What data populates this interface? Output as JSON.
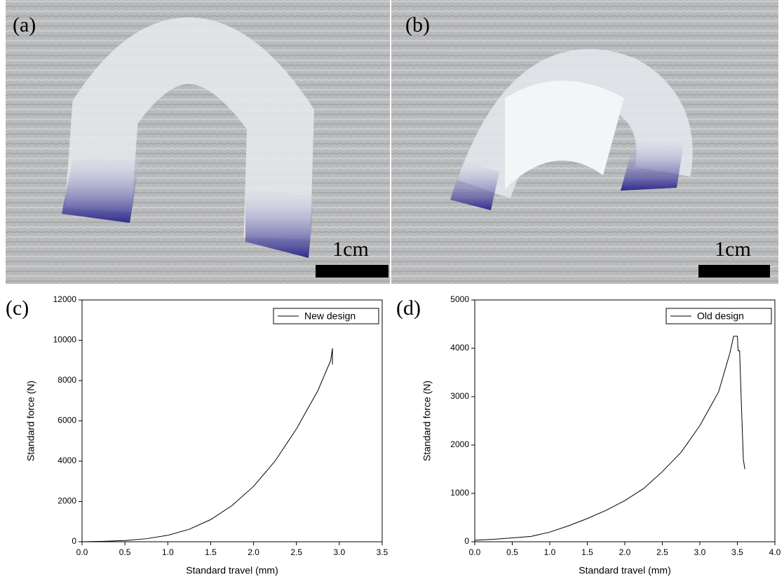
{
  "photos": [
    {
      "label": "(a)",
      "scale_bar": "1cm"
    },
    {
      "label": "(b)",
      "scale_bar": "1cm"
    }
  ],
  "chart_data": [
    {
      "type": "line",
      "panel": "(c)",
      "x_label": "Standard travel (mm)",
      "y_label": "Standard force (N)",
      "x": [
        0,
        0.25,
        0.5,
        0.75,
        1.0,
        1.25,
        1.5,
        1.75,
        2.0,
        2.25,
        2.5,
        2.75,
        2.9,
        2.92,
        2.92
      ],
      "series": [
        {
          "name": "New design",
          "color": "#000000",
          "values": [
            0,
            20,
            60,
            150,
            320,
            620,
            1100,
            1800,
            2750,
            4000,
            5600,
            7500,
            9000,
            9600,
            8800
          ]
        }
      ],
      "xlim": [
        0,
        3.5
      ],
      "xticks": [
        {
          "value": 0,
          "label": "0.0"
        },
        0.5,
        {
          "value": 1,
          "label": "1.0"
        },
        1.5,
        {
          "value": 2,
          "label": "2.0"
        },
        2.5,
        {
          "value": 3,
          "label": "3.0"
        },
        3.5
      ],
      "ylim": [
        0,
        12000
      ],
      "yticks": [
        0,
        2000,
        4000,
        6000,
        8000,
        10000,
        12000
      ],
      "legend": "top-right"
    },
    {
      "type": "line",
      "panel": "(d)",
      "x_label": "Standard travel (mm)",
      "y_label": "Standard force (N)",
      "x": [
        0,
        0.25,
        0.5,
        0.75,
        1.0,
        1.25,
        1.5,
        1.75,
        2.0,
        2.25,
        2.5,
        2.75,
        3.0,
        3.25,
        3.4,
        3.45,
        3.5,
        3.51,
        3.53,
        3.55,
        3.58,
        3.6
      ],
      "series": [
        {
          "name": "Old design",
          "color": "#000000",
          "values": [
            30,
            50,
            80,
            110,
            200,
            330,
            480,
            650,
            850,
            1100,
            1450,
            1850,
            2400,
            3100,
            3900,
            4250,
            4250,
            3950,
            3950,
            3000,
            1700,
            1500
          ]
        }
      ],
      "xlim": [
        0,
        4
      ],
      "xticks": [
        {
          "value": 0,
          "label": "0.0"
        },
        0.5,
        {
          "value": 1,
          "label": "1.0"
        },
        1.5,
        {
          "value": 2,
          "label": "2.0"
        },
        2.5,
        {
          "value": 3,
          "label": "3.0"
        },
        3.5,
        {
          "value": 4,
          "label": "4.0"
        }
      ],
      "ylim": [
        0,
        5000
      ],
      "yticks": [
        0,
        1000,
        2000,
        3000,
        4000,
        5000
      ],
      "legend": "top-right"
    }
  ]
}
